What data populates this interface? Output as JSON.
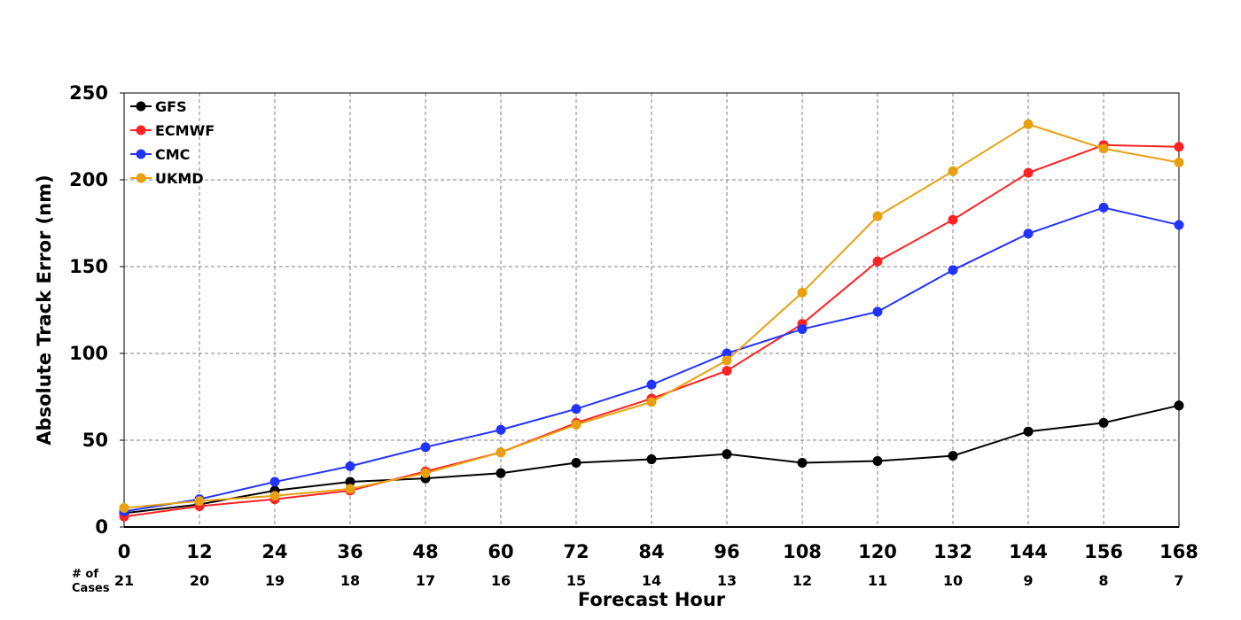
{
  "chart_data": {
    "type": "line",
    "xlabel": "Forecast Hour",
    "ylabel": "Absolute Track Error (nm)",
    "xlim": [
      0,
      168
    ],
    "ylim": [
      0,
      250
    ],
    "x": [
      0,
      12,
      24,
      36,
      48,
      60,
      72,
      84,
      96,
      108,
      120,
      132,
      144,
      156,
      168
    ],
    "y_ticks": [
      0,
      50,
      100,
      150,
      200,
      250
    ],
    "grid": true,
    "legend_position": "top-left",
    "cases_label": [
      "# of",
      "Cases"
    ],
    "cases": [
      21,
      20,
      19,
      18,
      17,
      16,
      15,
      14,
      13,
      12,
      11,
      10,
      9,
      8,
      7
    ],
    "series": [
      {
        "name": "GFS",
        "color": "#000000",
        "values": [
          8,
          13,
          21,
          26,
          28,
          31,
          37,
          39,
          42,
          37,
          38,
          41,
          55,
          60,
          70
        ]
      },
      {
        "name": "ECMWF",
        "color": "#ff2222",
        "values": [
          6,
          12,
          16,
          21,
          32,
          43,
          60,
          74,
          90,
          117,
          153,
          177,
          204,
          220,
          219
        ]
      },
      {
        "name": "CMC",
        "color": "#2233ff",
        "values": [
          9,
          16,
          26,
          35,
          46,
          56,
          68,
          82,
          100,
          114,
          124,
          148,
          169,
          184,
          174
        ]
      },
      {
        "name": "UKMD",
        "color": "#e8a010",
        "values": [
          11,
          15,
          18,
          22,
          31,
          43,
          59,
          72,
          96,
          135,
          179,
          205,
          232,
          218,
          210
        ]
      }
    ]
  }
}
